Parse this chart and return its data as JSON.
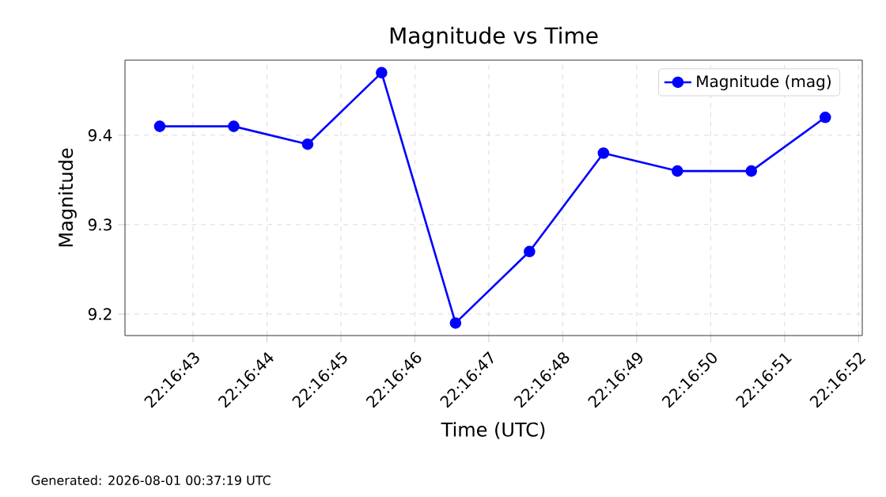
{
  "chart_data": {
    "type": "line",
    "title": "Magnitude vs Time",
    "xlabel": "Time (UTC)",
    "ylabel": "Magnitude",
    "x": [
      22.2784861,
      22.2787639,
      22.2790417,
      22.2793194,
      22.2795972,
      22.279875,
      22.2801528,
      22.2804306,
      22.2807083,
      22.2809861
    ],
    "series": [
      {
        "name": "Magnitude (mag)",
        "color": "#0000ff",
        "values": [
          9.41,
          9.41,
          9.39,
          9.47,
          9.19,
          9.27,
          9.38,
          9.36,
          9.36,
          9.42
        ]
      }
    ],
    "xlim": [
      22.2783556,
      22.281125
    ],
    "xticks": [
      {
        "value": 22.2786111,
        "label": "22:16:43"
      },
      {
        "value": 22.2788889,
        "label": "22:16:44"
      },
      {
        "value": 22.2791667,
        "label": "22:16:45"
      },
      {
        "value": 22.2794444,
        "label": "22:16:46"
      },
      {
        "value": 22.2797222,
        "label": "22:16:47"
      },
      {
        "value": 22.28,
        "label": "22:16:48"
      },
      {
        "value": 22.2802778,
        "label": "22:16:49"
      },
      {
        "value": 22.2805556,
        "label": "22:16:50"
      },
      {
        "value": 22.2808333,
        "label": "22:16:51"
      },
      {
        "value": 22.2811111,
        "label": "22:16:52"
      }
    ],
    "ylim": [
      9.176,
      9.484
    ],
    "yticks": [
      9.2,
      9.3,
      9.4
    ],
    "grid": true,
    "legend": "top right",
    "marker": "circle",
    "line_style": "solid",
    "annotations": [
      "Generated: 2026-08-01 00:37:19 UTC"
    ]
  }
}
